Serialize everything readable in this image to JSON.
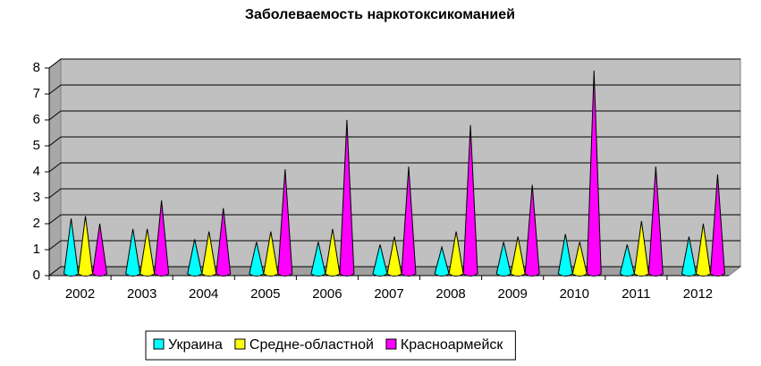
{
  "chart_data": {
    "type": "bar",
    "title": "Заболеваемость наркотоксикоманией",
    "categories": [
      "2002",
      "2003",
      "2004",
      "2005",
      "2006",
      "2007",
      "2008",
      "2009",
      "2010",
      "2011",
      "2012"
    ],
    "series": [
      {
        "name": "Украина",
        "color": "#00ffff",
        "values": [
          2.2,
          1.8,
          1.4,
          1.3,
          1.3,
          1.2,
          1.1,
          1.3,
          1.6,
          1.2,
          1.5
        ]
      },
      {
        "name": "Средне-областной",
        "color": "#ffff00",
        "values": [
          2.3,
          1.8,
          1.7,
          1.7,
          1.8,
          1.5,
          1.7,
          1.5,
          1.3,
          2.1,
          2.0
        ]
      },
      {
        "name": "Красноармейск",
        "color": "#ff00ff",
        "values": [
          2.0,
          2.9,
          2.6,
          4.1,
          6.0,
          4.2,
          5.8,
          3.5,
          7.9,
          4.2,
          3.9
        ]
      }
    ],
    "ylim": [
      0,
      8
    ],
    "yticks": [
      0,
      1,
      2,
      3,
      4,
      5,
      6,
      7,
      8
    ],
    "grid": true
  }
}
